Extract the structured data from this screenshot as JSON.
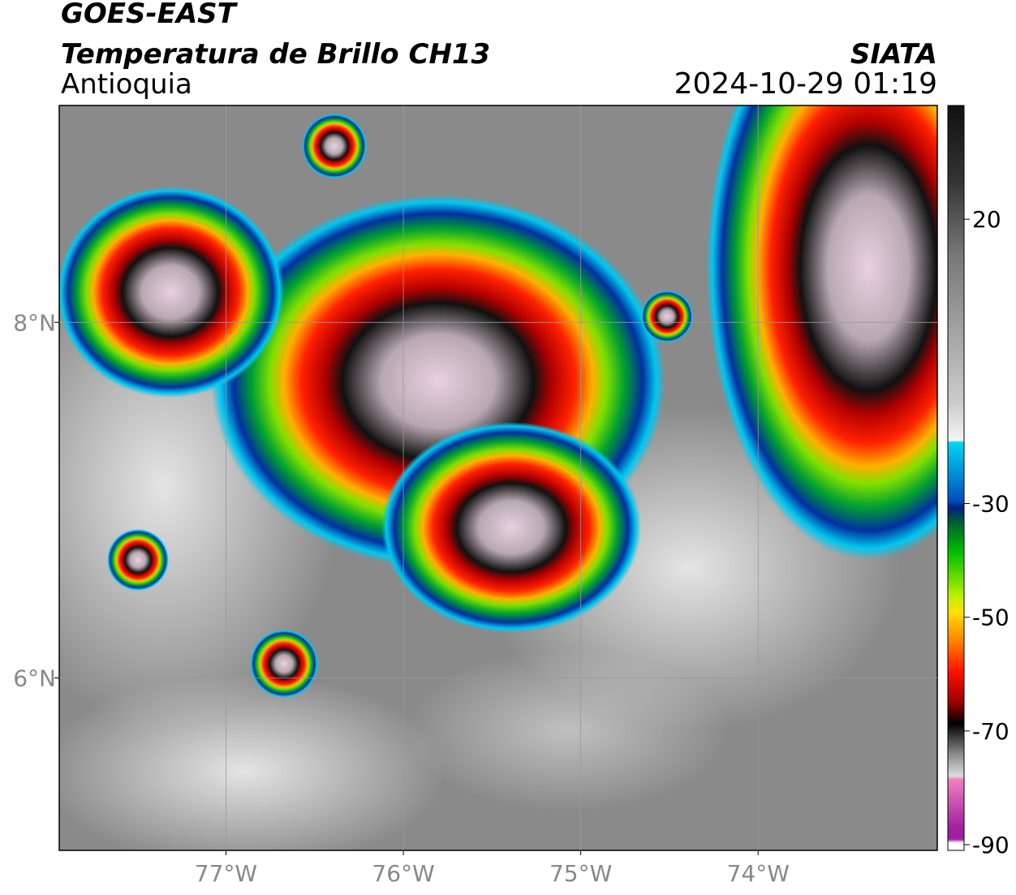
{
  "header": {
    "title": "GOES-EAST",
    "subtitle": "Temperatura de Brillo CH13",
    "region": "Antioquia",
    "source": "SIATA",
    "timestamp": "2024-10-29 01:19"
  },
  "map": {
    "xlim": [
      -77.94,
      -72.99
    ],
    "ylim": [
      5.03,
      9.22
    ],
    "xticks": [
      {
        "value": -77,
        "label": "77°W"
      },
      {
        "value": -76,
        "label": "76°W"
      },
      {
        "value": -75,
        "label": "75°W"
      },
      {
        "value": -74,
        "label": "74°W"
      }
    ],
    "yticks": [
      {
        "value": 6,
        "label": "6°N"
      },
      {
        "value": 8,
        "label": "8°N"
      }
    ]
  },
  "colorbar": {
    "lim": [
      -91,
      40
    ],
    "ticks": [
      20,
      -30,
      -50,
      -70,
      -90
    ]
  }
}
